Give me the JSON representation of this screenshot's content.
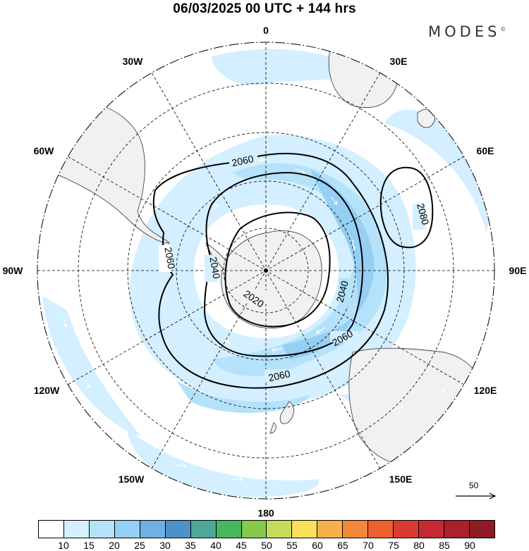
{
  "title": "06/03/2025  00 UTC  + 144 hrs",
  "brand": "MODES",
  "brand_mark": "©",
  "longitude_labels": {
    "lon_0": "0",
    "lon_30e": "30E",
    "lon_60e": "60E",
    "lon_90e": "90E",
    "lon_120e": "120E",
    "lon_150e": "150E",
    "lon_180": "180",
    "lon_150w": "150W",
    "lon_120w": "120W",
    "lon_90w": "90W",
    "lon_60w": "60W",
    "lon_30w": "30W"
  },
  "contour_labels": [
    "2060",
    "2080",
    "2060",
    "2040",
    "2020",
    "2040",
    "2060",
    "2060",
    "2040"
  ],
  "reference_vector": {
    "value": "50"
  },
  "colorbar": {
    "colors": [
      "#ffffff",
      "#d4efff",
      "#b5e2fb",
      "#95cff3",
      "#6eb1e3",
      "#4c91c9",
      "#4da79a",
      "#48b75c",
      "#86c94f",
      "#c4dc59",
      "#f7e05a",
      "#f6b14a",
      "#f08a3a",
      "#ec612f",
      "#db3a31",
      "#c52a32",
      "#ac1f2d",
      "#8f1a24"
    ],
    "ticks": [
      "10",
      "15",
      "20",
      "25",
      "30",
      "35",
      "40",
      "45",
      "50",
      "55",
      "60",
      "65",
      "70",
      "75",
      "80",
      "85",
      "90"
    ]
  }
}
